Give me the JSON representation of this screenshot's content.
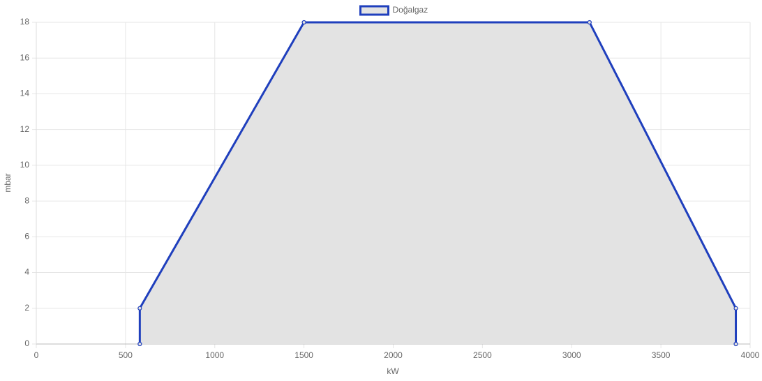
{
  "chart_data": {
    "type": "line",
    "x": [
      580,
      580,
      1500,
      3100,
      3920,
      3920
    ],
    "series": [
      {
        "name": "Doğalgaz",
        "color": "#1f3fbd",
        "fill": "#e3e3e3",
        "values": [
          0,
          2,
          18,
          18,
          2,
          0
        ]
      }
    ],
    "xlim": [
      0,
      4000
    ],
    "xticks": [
      0,
      500,
      1000,
      1500,
      2000,
      2500,
      3000,
      3500,
      4000
    ],
    "ylim": [
      0,
      18
    ],
    "yticks": [
      0,
      2,
      4,
      6,
      8,
      10,
      12,
      14,
      16,
      18
    ],
    "xlabel": "kW",
    "ylabel": "mbar",
    "grid": true,
    "legend": "top"
  }
}
